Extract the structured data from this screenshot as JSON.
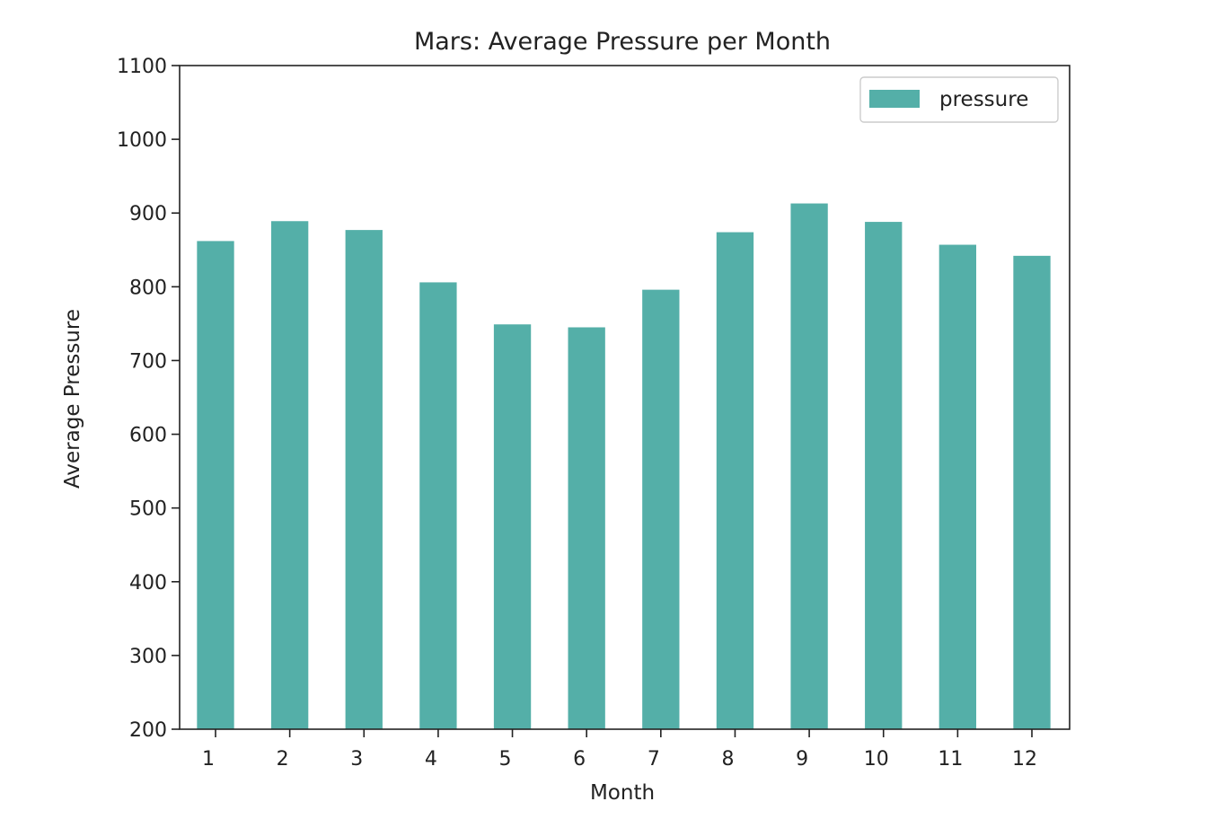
{
  "chart_data": {
    "type": "bar",
    "title": "Mars: Average Pressure per Month",
    "xlabel": "Month",
    "ylabel": "Average Pressure",
    "categories": [
      "1",
      "2",
      "3",
      "4",
      "5",
      "6",
      "7",
      "8",
      "9",
      "10",
      "11",
      "12"
    ],
    "series": [
      {
        "name": "pressure",
        "color": "#54AFA8",
        "values": [
          862,
          889,
          877,
          806,
          749,
          745,
          796,
          874,
          913,
          888,
          857,
          842
        ]
      }
    ],
    "ylim": [
      200,
      1100
    ],
    "yticks": [
      200,
      300,
      400,
      500,
      600,
      700,
      800,
      900,
      1000,
      1100
    ],
    "grid": false,
    "legend_position": "top-right"
  }
}
